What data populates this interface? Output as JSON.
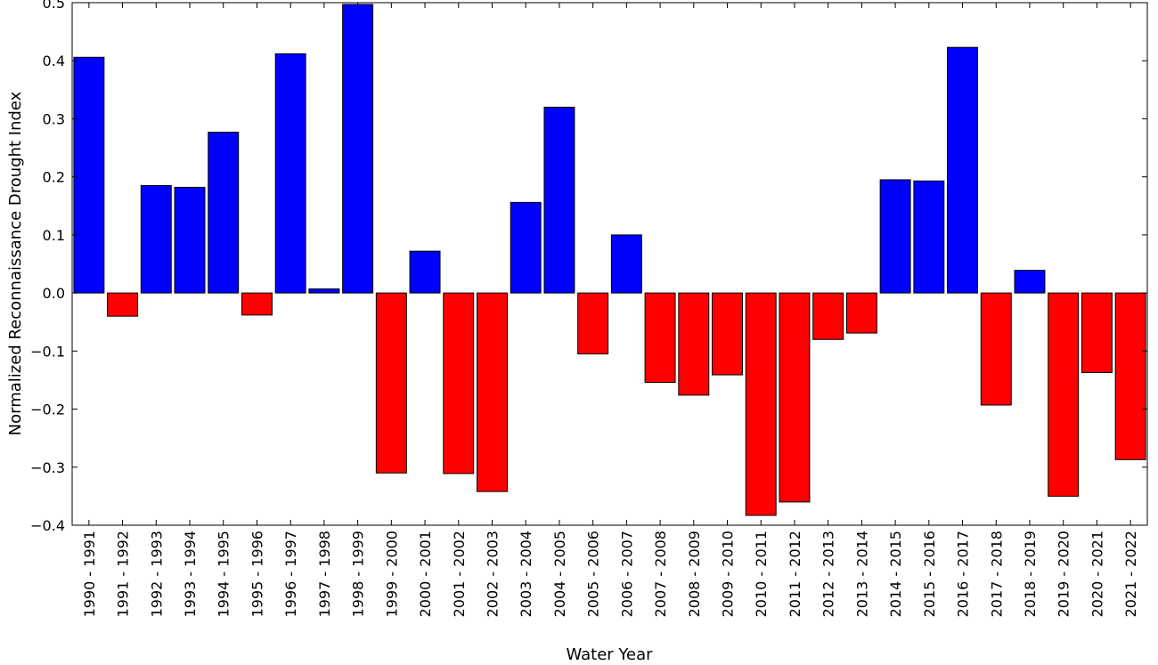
{
  "chart_data": {
    "type": "bar",
    "title": "",
    "xlabel": "Water Year",
    "ylabel": "Normalized Reconnaissance Drought Index",
    "ylim": [
      -0.4,
      0.5
    ],
    "yticks": [
      "0.5",
      "0.4",
      "0.3",
      "0.2",
      "0.1",
      "0.0",
      "−0.1",
      "−0.2",
      "−0.3",
      "−0.4"
    ],
    "ytick_values": [
      0.5,
      0.4,
      0.3,
      0.2,
      0.1,
      0.0,
      -0.1,
      -0.2,
      -0.3,
      -0.4
    ],
    "grid": false,
    "colors": {
      "positive": "#0000ff",
      "negative": "#ff0000",
      "edge": "#000000"
    },
    "categories": [
      "1990 - 1991",
      "1991 - 1992",
      "1992 - 1993",
      "1993 - 1994",
      "1994 - 1995",
      "1995 - 1996",
      "1996 - 1997",
      "1997 - 1998",
      "1998 - 1999",
      "1999 - 2000",
      "2000 - 2001",
      "2001 - 2002",
      "2002 - 2003",
      "2003 - 2004",
      "2004 - 2005",
      "2005 - 2006",
      "2006 - 2007",
      "2007 - 2008",
      "2008 - 2009",
      "2009 - 2010",
      "2010 - 2011",
      "2011 - 2012",
      "2012 - 2013",
      "2013 - 2014",
      "2014 - 2015",
      "2015 - 2016",
      "2016 - 2017",
      "2017 - 2018",
      "2018 - 2019",
      "2019 - 2020",
      "2020 - 2021",
      "2021 - 2022"
    ],
    "values": [
      0.406,
      -0.04,
      0.185,
      0.182,
      0.277,
      -0.038,
      0.412,
      0.007,
      0.497,
      -0.31,
      0.072,
      -0.311,
      -0.342,
      0.156,
      0.32,
      -0.105,
      0.1,
      -0.154,
      -0.176,
      -0.141,
      -0.383,
      -0.36,
      -0.08,
      -0.069,
      0.195,
      0.193,
      0.423,
      -0.193,
      0.039,
      -0.35,
      -0.137,
      -0.287
    ]
  }
}
